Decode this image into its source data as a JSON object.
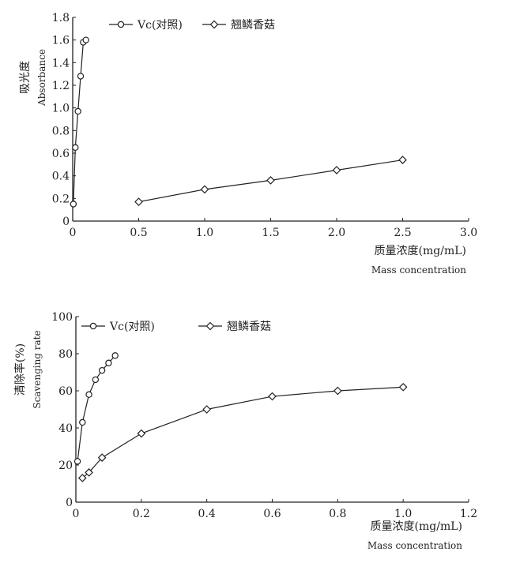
{
  "chart_data": [
    {
      "type": "line",
      "ylabel_cn": "吸光度",
      "ylabel_en": "Absorbance",
      "xlabel_cn": "质量浓度(mg/mL)",
      "xlabel_en": "Mass concentration",
      "xlim": [
        0,
        3.0
      ],
      "ylim": [
        0,
        1.8
      ],
      "x_ticks": [
        "0",
        "0.5",
        "1.0",
        "1.5",
        "2.0",
        "2.5",
        "3.0"
      ],
      "x_tick_values": [
        0,
        0.5,
        1.0,
        1.5,
        2.0,
        2.5,
        3.0
      ],
      "y_ticks": [
        "0",
        "0.2",
        "0.4",
        "0.6",
        "0.8",
        "1.0",
        "1.2",
        "1.4",
        "1.6",
        "1.8"
      ],
      "y_tick_values": [
        0,
        0.2,
        0.4,
        0.6,
        0.8,
        1.0,
        1.2,
        1.4,
        1.6,
        1.8
      ],
      "legend_position": "top",
      "series": [
        {
          "name": "Vc(对照)",
          "marker": "circle",
          "x": [
            0.005,
            0.02,
            0.04,
            0.06,
            0.08,
            0.1
          ],
          "y": [
            0.15,
            0.65,
            0.97,
            1.28,
            1.58,
            1.6
          ]
        },
        {
          "name": "翘鳞香菇",
          "marker": "diamond",
          "x": [
            0.5,
            1.0,
            1.5,
            2.0,
            2.5
          ],
          "y": [
            0.17,
            0.28,
            0.36,
            0.45,
            0.54
          ]
        }
      ]
    },
    {
      "type": "line",
      "ylabel_cn": "清除率(%)",
      "ylabel_en": "Scavenging rate",
      "xlabel_cn": "质量浓度(mg/mL)",
      "xlabel_en": "Mass concentration",
      "xlim": [
        0,
        1.2
      ],
      "ylim": [
        0,
        100
      ],
      "x_ticks": [
        "0",
        "0.2",
        "0.4",
        "0.6",
        "0.8",
        "1.0",
        "1.2"
      ],
      "x_tick_values": [
        0,
        0.2,
        0.4,
        0.6,
        0.8,
        1.0,
        1.2
      ],
      "y_ticks": [
        "0",
        "20",
        "40",
        "60",
        "80",
        "100"
      ],
      "y_tick_values": [
        0,
        20,
        40,
        60,
        80,
        100
      ],
      "legend_position": "top",
      "series": [
        {
          "name": "Vc(对照)",
          "marker": "circle",
          "x": [
            0.005,
            0.02,
            0.04,
            0.06,
            0.08,
            0.1,
            0.12
          ],
          "y": [
            22,
            43,
            58,
            66,
            71,
            75,
            79
          ]
        },
        {
          "name": "翘鳞香菇",
          "marker": "diamond",
          "x": [
            0.02,
            0.04,
            0.08,
            0.2,
            0.4,
            0.6,
            0.8,
            1.0
          ],
          "y": [
            13,
            16,
            24,
            37,
            50,
            57,
            60,
            62
          ]
        }
      ]
    }
  ]
}
